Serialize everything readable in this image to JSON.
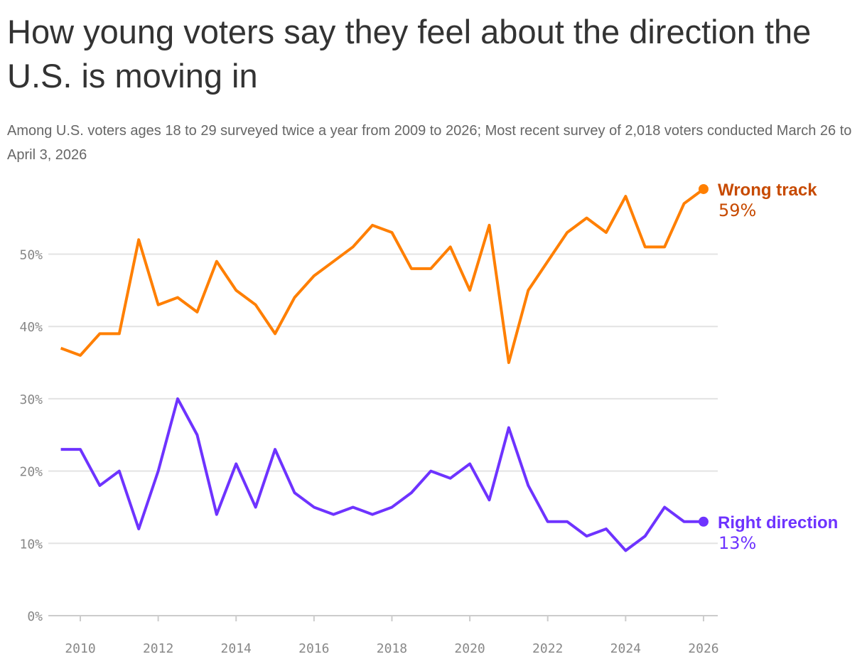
{
  "title": "How young voters say they feel about the direction the U.S. is moving in",
  "subtitle": "Among U.S. voters ages 18 to 29 surveyed twice a year from 2009 to 2026; Most recent survey of 2,018 voters conducted March 26 to April 3, 2026",
  "chart_data": {
    "type": "line",
    "x": [
      2009.5,
      2010,
      2010.5,
      2011,
      2011.5,
      2012,
      2012.5,
      2013,
      2013.5,
      2014,
      2014.5,
      2015,
      2015.5,
      2016,
      2016.5,
      2017,
      2017.5,
      2018,
      2018.5,
      2019,
      2019.5,
      2020,
      2020.5,
      2021,
      2021.5,
      2022,
      2022.5,
      2023,
      2023.5,
      2024,
      2024.5,
      2025,
      2025.5,
      2026
    ],
    "series": [
      {
        "name": "Wrong track",
        "end_label": "59%",
        "color": "#ff7f00",
        "label_color": "#c74a00",
        "values": [
          37,
          36,
          39,
          39,
          52,
          43,
          44,
          42,
          49,
          45,
          43,
          39,
          44,
          47,
          49,
          51,
          54,
          53,
          48,
          48,
          51,
          45,
          54,
          35,
          45,
          49,
          53,
          55,
          53,
          58,
          51,
          51,
          57,
          59
        ]
      },
      {
        "name": "Right direction",
        "end_label": "13%",
        "color": "#6e33ff",
        "label_color": "#6e33ff",
        "values": [
          23,
          23,
          18,
          20,
          12,
          20,
          30,
          25,
          14,
          21,
          15,
          23,
          17,
          15,
          14,
          15,
          14,
          15,
          17,
          20,
          19,
          21,
          16,
          26,
          18,
          13,
          13,
          11,
          12,
          9,
          11,
          15,
          13,
          13
        ]
      }
    ],
    "y_ticks": [
      "0%",
      "10%",
      "20%",
      "30%",
      "40%",
      "50%"
    ],
    "x_ticks": [
      "2010",
      "2012",
      "2014",
      "2016",
      "2018",
      "2020",
      "2022",
      "2024",
      "2026"
    ],
    "ylim": [
      0,
      60
    ],
    "xlim": [
      2009.5,
      2026
    ],
    "grid": true,
    "legend": "end-labels"
  }
}
